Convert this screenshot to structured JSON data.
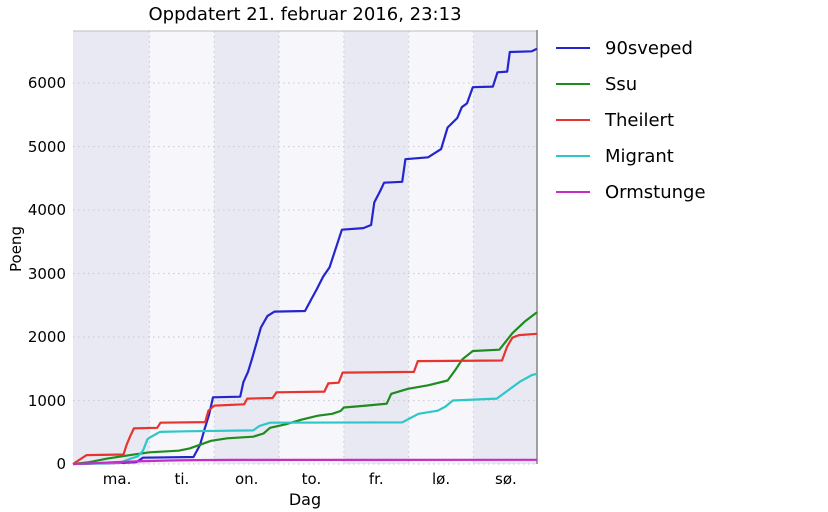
{
  "chart_data": {
    "type": "line",
    "title": "Oppdatert 21. februar 2016, 23:13",
    "xlabel": "Dag",
    "ylabel": "Poeng",
    "x_unit": "days since Monday 00:00",
    "x_tick_labels": [
      "ma.",
      "ti.",
      "on.",
      "to.",
      "fr.",
      "lø.",
      "sø."
    ],
    "y_ticks": [
      0,
      1000,
      2000,
      3000,
      4000,
      5000,
      6000
    ],
    "xlim": [
      -0.18,
      6.98
    ],
    "ylim": [
      0,
      6820
    ],
    "grid": "dotted",
    "legend_position": "outside-right",
    "band_colors": [
      "#e9e9f3",
      "#f6f6fb"
    ],
    "grid_color": "#cdcdd8",
    "spine_color": "#8c8c8c",
    "series": [
      {
        "name": "90sveped",
        "color": "#2525cd",
        "points": [
          [
            -0.18,
            0
          ],
          [
            0.5,
            15
          ],
          [
            0.8,
            30
          ],
          [
            0.9,
            100
          ],
          [
            1.68,
            110
          ],
          [
            1.78,
            300
          ],
          [
            1.85,
            550
          ],
          [
            1.92,
            780
          ],
          [
            1.98,
            1050
          ],
          [
            2.4,
            1060
          ],
          [
            2.45,
            1290
          ],
          [
            2.52,
            1450
          ],
          [
            2.58,
            1650
          ],
          [
            2.65,
            1900
          ],
          [
            2.72,
            2150
          ],
          [
            2.82,
            2330
          ],
          [
            2.93,
            2400
          ],
          [
            3.4,
            2410
          ],
          [
            3.5,
            2600
          ],
          [
            3.58,
            2750
          ],
          [
            3.68,
            2950
          ],
          [
            3.78,
            3100
          ],
          [
            3.86,
            3350
          ],
          [
            3.97,
            3690
          ],
          [
            4.3,
            3715
          ],
          [
            4.42,
            3765
          ],
          [
            4.47,
            4120
          ],
          [
            4.56,
            4300
          ],
          [
            4.62,
            4430
          ],
          [
            4.9,
            4445
          ],
          [
            4.95,
            4800
          ],
          [
            5.3,
            4830
          ],
          [
            5.5,
            4960
          ],
          [
            5.6,
            5300
          ],
          [
            5.75,
            5450
          ],
          [
            5.82,
            5620
          ],
          [
            5.9,
            5680
          ],
          [
            5.99,
            5935
          ],
          [
            6.3,
            5945
          ],
          [
            6.37,
            6170
          ],
          [
            6.52,
            6180
          ],
          [
            6.56,
            6490
          ],
          [
            6.9,
            6500
          ],
          [
            6.98,
            6540
          ]
        ]
      },
      {
        "name": "Ssu",
        "color": "#1e8c1e",
        "points": [
          [
            -0.18,
            0
          ],
          [
            0.05,
            25
          ],
          [
            0.35,
            85
          ],
          [
            0.7,
            140
          ],
          [
            1.0,
            185
          ],
          [
            1.45,
            210
          ],
          [
            1.62,
            245
          ],
          [
            1.8,
            310
          ],
          [
            1.95,
            365
          ],
          [
            2.2,
            405
          ],
          [
            2.6,
            430
          ],
          [
            2.76,
            480
          ],
          [
            2.86,
            570
          ],
          [
            3.1,
            625
          ],
          [
            3.35,
            700
          ],
          [
            3.6,
            760
          ],
          [
            3.82,
            790
          ],
          [
            3.95,
            835
          ],
          [
            4.0,
            890
          ],
          [
            4.3,
            915
          ],
          [
            4.66,
            950
          ],
          [
            4.73,
            1105
          ],
          [
            4.99,
            1185
          ],
          [
            5.3,
            1240
          ],
          [
            5.6,
            1315
          ],
          [
            5.72,
            1480
          ],
          [
            5.83,
            1650
          ],
          [
            5.99,
            1780
          ],
          [
            6.4,
            1800
          ],
          [
            6.6,
            2060
          ],
          [
            6.8,
            2250
          ],
          [
            6.98,
            2390
          ]
        ]
      },
      {
        "name": "Theilert",
        "color": "#e8342e",
        "points": [
          [
            -0.18,
            0
          ],
          [
            0.03,
            140
          ],
          [
            0.6,
            150
          ],
          [
            0.65,
            310
          ],
          [
            0.7,
            430
          ],
          [
            0.76,
            560
          ],
          [
            1.12,
            570
          ],
          [
            1.17,
            650
          ],
          [
            1.86,
            660
          ],
          [
            1.91,
            840
          ],
          [
            2.0,
            920
          ],
          [
            2.46,
            940
          ],
          [
            2.51,
            1030
          ],
          [
            2.9,
            1040
          ],
          [
            2.96,
            1130
          ],
          [
            3.7,
            1140
          ],
          [
            3.76,
            1270
          ],
          [
            3.92,
            1280
          ],
          [
            3.98,
            1440
          ],
          [
            5.08,
            1450
          ],
          [
            5.14,
            1620
          ],
          [
            6.44,
            1630
          ],
          [
            6.52,
            1850
          ],
          [
            6.6,
            1990
          ],
          [
            6.7,
            2030
          ],
          [
            6.98,
            2050
          ]
        ]
      },
      {
        "name": "Migrant",
        "color": "#2ec7c9",
        "points": [
          [
            -0.18,
            0
          ],
          [
            0.55,
            20
          ],
          [
            0.72,
            90
          ],
          [
            0.82,
            120
          ],
          [
            0.9,
            210
          ],
          [
            0.97,
            390
          ],
          [
            1.02,
            425
          ],
          [
            1.16,
            505
          ],
          [
            1.55,
            515
          ],
          [
            2.6,
            530
          ],
          [
            2.7,
            600
          ],
          [
            2.86,
            650
          ],
          [
            4.9,
            655
          ],
          [
            5.02,
            720
          ],
          [
            5.15,
            790
          ],
          [
            5.45,
            840
          ],
          [
            5.57,
            905
          ],
          [
            5.68,
            1000
          ],
          [
            6.36,
            1030
          ],
          [
            6.52,
            1150
          ],
          [
            6.72,
            1300
          ],
          [
            6.9,
            1400
          ],
          [
            6.98,
            1420
          ]
        ]
      },
      {
        "name": "Ormstunge",
        "color": "#c52dc5",
        "points": [
          [
            -0.18,
            0
          ],
          [
            0.15,
            12
          ],
          [
            0.5,
            30
          ],
          [
            0.9,
            45
          ],
          [
            1.3,
            55
          ],
          [
            1.7,
            62
          ],
          [
            2.3,
            65
          ],
          [
            6.98,
            66
          ]
        ]
      }
    ]
  }
}
